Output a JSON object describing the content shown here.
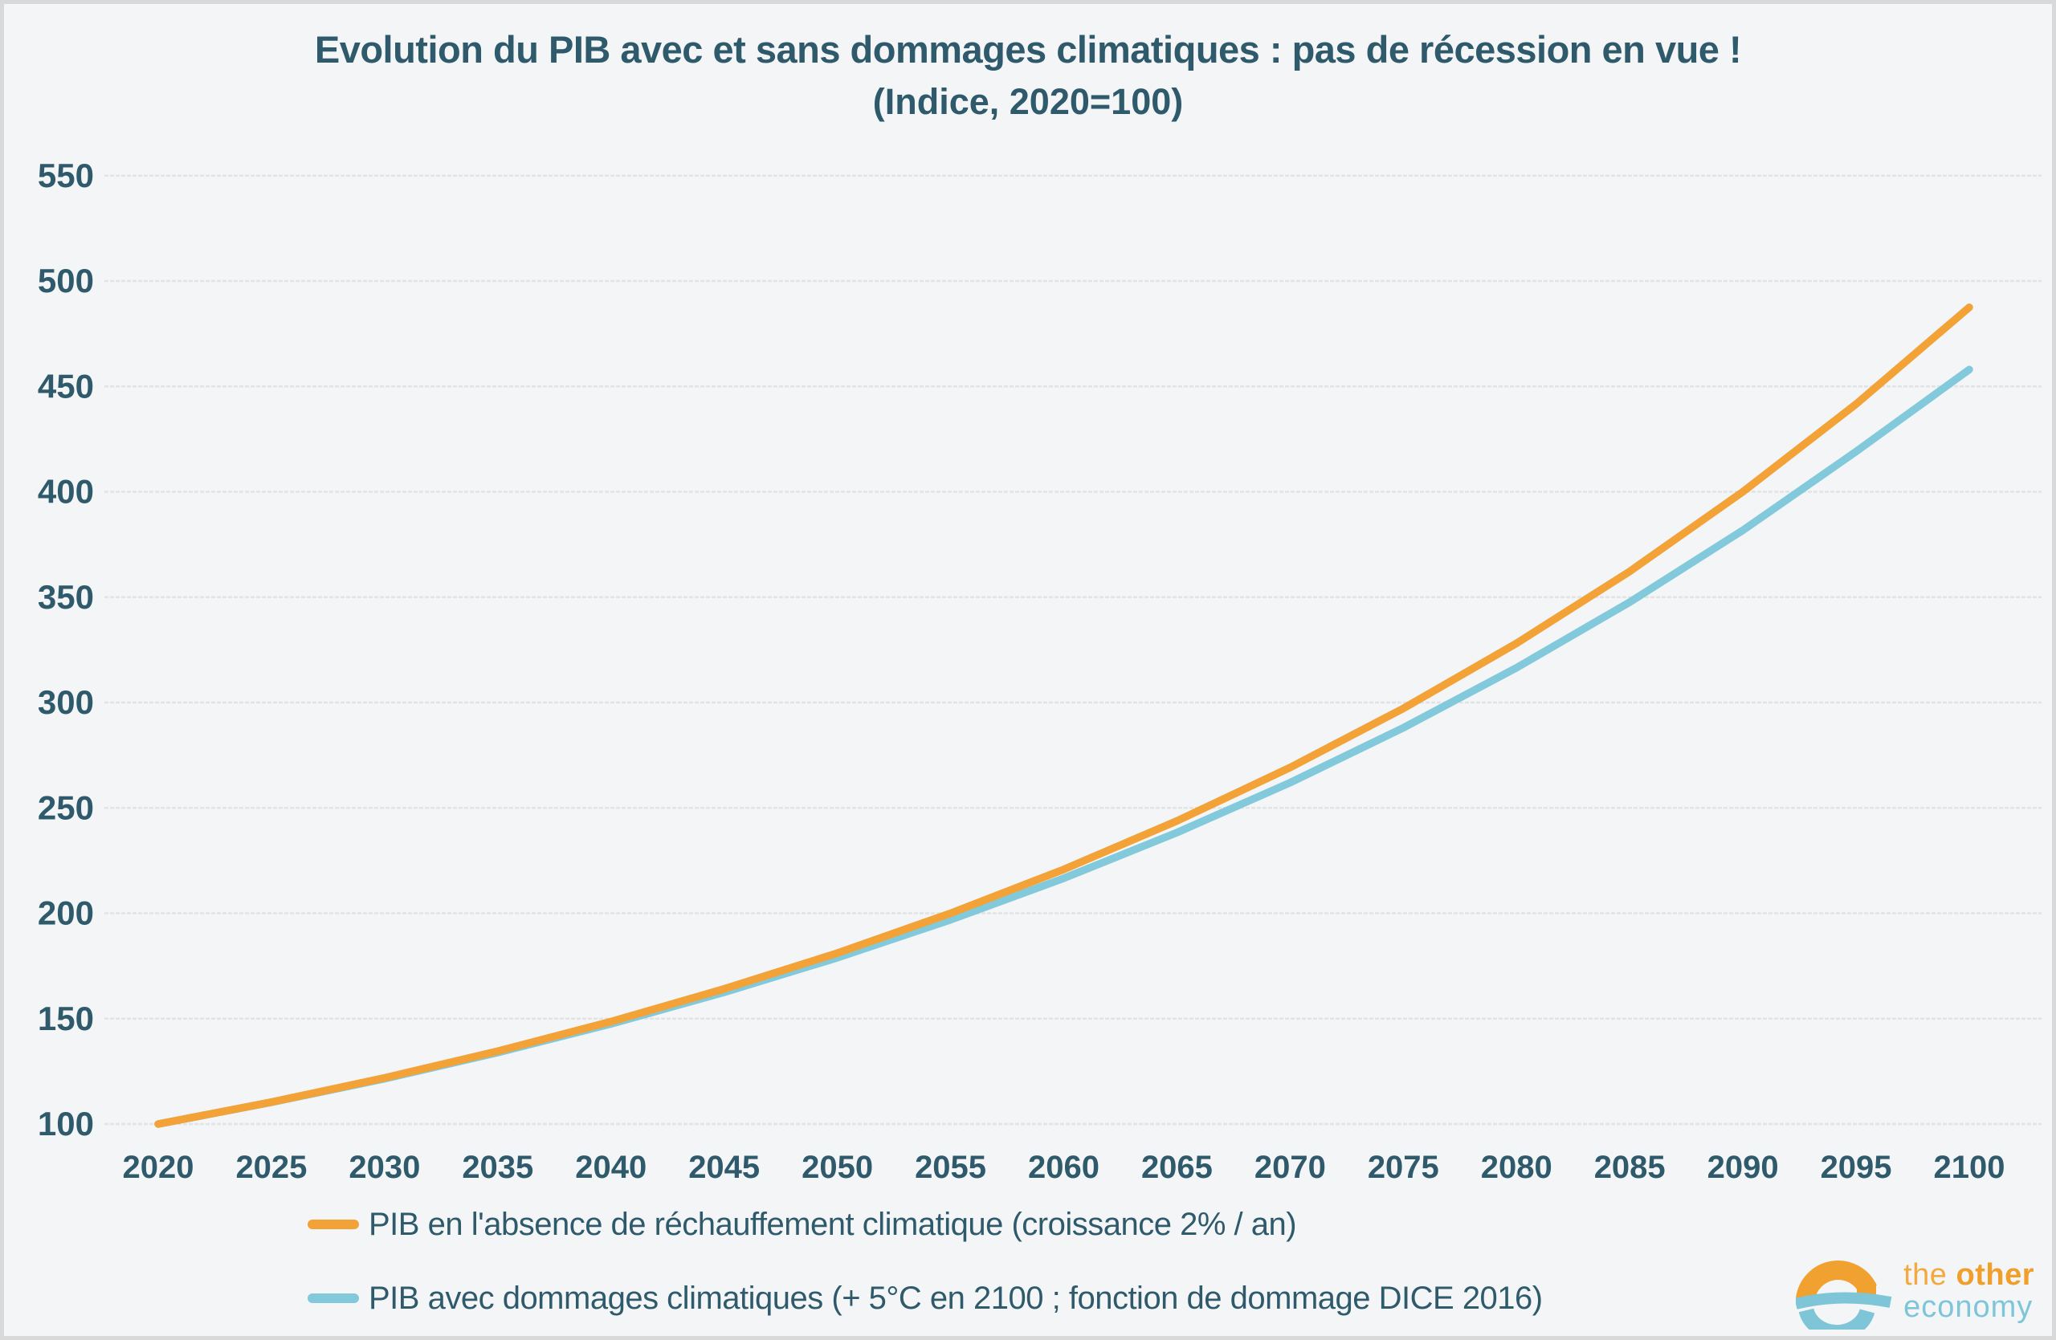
{
  "title": {
    "line1": "Evolution du PIB avec et sans dommages climatiques : pas de récession en vue !",
    "line2": "(Indice, 2020=100)"
  },
  "colors": {
    "background": "#F4F5F7",
    "border": "#D9D9D9",
    "grid": "#E2E3E4",
    "text": "#2F5A6B",
    "orange": "#F2A236",
    "blue": "#82C9DC"
  },
  "chart_data": {
    "type": "line",
    "x": [
      2020,
      2025,
      2030,
      2035,
      2040,
      2045,
      2050,
      2055,
      2060,
      2065,
      2070,
      2075,
      2080,
      2085,
      2090,
      2095,
      2100
    ],
    "series": [
      {
        "name": "PIB en l'absence de réchauffement climatique (croissance 2% / an)",
        "color": "#F2A236",
        "values": [
          100,
          110.4,
          121.9,
          134.6,
          148.6,
          164.1,
          181.1,
          200.0,
          220.8,
          243.8,
          269.2,
          297.2,
          328.1,
          362.2,
          400.0,
          441.6,
          487.5
        ]
      },
      {
        "name": "PIB avec dommages climatiques (+ 5°C en 2100 ; fonction de dommage DICE 2016)",
        "color": "#82C9DC",
        "values": [
          100,
          110.3,
          121.5,
          133.9,
          147.5,
          162.5,
          178.9,
          196.9,
          216.6,
          238.3,
          262.0,
          288.0,
          316.5,
          347.6,
          381.7,
          419.1,
          458.0
        ]
      }
    ],
    "ylim": [
      100,
      550
    ],
    "yticks": [
      100,
      150,
      200,
      250,
      300,
      350,
      400,
      450,
      500,
      550
    ],
    "grid": "horizontal",
    "legend_position": "bottom-left",
    "xlabel": "",
    "ylabel": ""
  },
  "logo": {
    "word_the": "the ",
    "word_other": "other",
    "word_economy": "economy"
  }
}
